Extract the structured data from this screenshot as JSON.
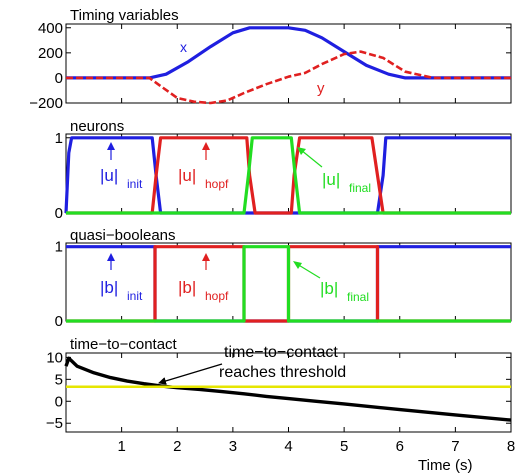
{
  "chart_data": [
    {
      "type": "line",
      "title": "Timing variables",
      "xlim": [
        0,
        8
      ],
      "ylim": [
        -200,
        430
      ],
      "yticks": [
        -200,
        0,
        200,
        400
      ],
      "grid": false,
      "series": [
        {
          "name": "x",
          "color": "#1f1fe0",
          "style": "solid",
          "x": [
            0,
            1,
            1.5,
            1.8,
            2.2,
            2.6,
            3.0,
            3.3,
            3.5,
            4.0,
            4.3,
            4.6,
            5.0,
            5.4,
            5.8,
            6.1,
            6.6,
            8
          ],
          "y": [
            0,
            0,
            0,
            30,
            130,
            250,
            360,
            400,
            400,
            400,
            380,
            320,
            210,
            100,
            30,
            0,
            0,
            0
          ]
        },
        {
          "name": "y",
          "color": "#e02020",
          "style": "dashed",
          "x": [
            0,
            1,
            1.5,
            1.75,
            2.0,
            2.3,
            2.6,
            2.9,
            3.2,
            3.6,
            4.0,
            4.3,
            4.6,
            5.0,
            5.3,
            5.7,
            6.1,
            6.6,
            8
          ],
          "y": [
            0,
            0,
            0,
            -80,
            -160,
            -190,
            -200,
            -180,
            -120,
            -50,
            10,
            40,
            110,
            190,
            210,
            160,
            50,
            0,
            0
          ]
        }
      ],
      "labels": [
        "x",
        "y"
      ]
    },
    {
      "type": "line",
      "title": "neurons",
      "xlim": [
        0,
        8
      ],
      "ylim": [
        0,
        1.05
      ],
      "yticks": [
        0,
        1
      ],
      "series": [
        {
          "name": "|u|init",
          "color": "#1f1fe0",
          "x": [
            0,
            0.05,
            0.1,
            1.55,
            1.62,
            1.7,
            5.6,
            5.7,
            5.75,
            8
          ],
          "y": [
            0,
            0.8,
            1,
            1,
            0.5,
            0,
            0,
            0.5,
            1,
            1
          ]
        },
        {
          "name": "|u|hopf",
          "color": "#e02020",
          "x": [
            0,
            1.55,
            1.62,
            1.7,
            3.25,
            3.3,
            3.4,
            4.05,
            4.1,
            4.2,
            5.5,
            5.6,
            5.7,
            8
          ],
          "y": [
            0,
            0,
            0.5,
            1,
            1,
            0.5,
            0,
            0,
            0.5,
            1,
            1,
            0.5,
            0,
            0
          ]
        },
        {
          "name": "|u|final",
          "color": "#22dd22",
          "x": [
            0,
            3.2,
            3.28,
            3.35,
            4.05,
            4.12,
            4.2,
            8
          ],
          "y": [
            0,
            0,
            0.5,
            1,
            1,
            0.5,
            0,
            0
          ]
        }
      ],
      "annotations": [
        {
          "base": "|u|",
          "sub": "init",
          "x": 0.8,
          "y": 0.66
        },
        {
          "base": "|u|",
          "sub": "hopf",
          "x": 2.43,
          "y": 0.66
        },
        {
          "base": "|u|",
          "sub": "final",
          "x": 4.62,
          "y": 0.6
        }
      ]
    },
    {
      "type": "line",
      "title": "quasi−booleans",
      "xlim": [
        0,
        8
      ],
      "ylim": [
        0,
        1.05
      ],
      "yticks": [
        0,
        1
      ],
      "series": [
        {
          "name": "|b|init",
          "color": "#1f1fe0",
          "x": [
            0,
            1.6,
            1.6,
            5.6,
            5.6,
            8
          ],
          "y": [
            1,
            1,
            0,
            0,
            1,
            1
          ]
        },
        {
          "name": "|b|hopf",
          "color": "#e02020",
          "x": [
            0,
            1.6,
            1.6,
            3.2,
            3.2,
            4.0,
            4.0,
            5.6,
            5.6,
            8
          ],
          "y": [
            0,
            0,
            1,
            1,
            0,
            0,
            1,
            1,
            0,
            0
          ]
        },
        {
          "name": "|b|final",
          "color": "#22dd22",
          "x": [
            0,
            3.2,
            3.2,
            4.0,
            4.0,
            8
          ],
          "y": [
            0,
            0,
            1,
            1,
            0,
            0
          ]
        }
      ],
      "annotations": [
        {
          "base": "|b|",
          "sub": "init",
          "x": 0.8,
          "y": 0.62
        },
        {
          "base": "|b|",
          "sub": "hopf",
          "x": 2.43,
          "y": 0.62
        },
        {
          "base": "|b|",
          "sub": "final",
          "x": 4.62,
          "y": 0.6
        }
      ]
    },
    {
      "type": "line",
      "title": "time−to−contact",
      "xlabel": "Time (s)",
      "xlim": [
        0,
        8
      ],
      "ylim": [
        -7,
        11
      ],
      "yticks": [
        -5,
        0,
        5,
        10
      ],
      "xticks": [
        1,
        2,
        3,
        4,
        5,
        6,
        7,
        8
      ],
      "series": [
        {
          "name": "time-to-contact",
          "color": "#000000",
          "x": [
            0,
            0.05,
            0.1,
            0.2,
            0.5,
            0.8,
            1.1,
            1.4,
            1.7,
            2.0,
            2.4,
            2.8,
            3.2,
            3.6,
            4.0,
            4.5,
            5.0,
            6.0,
            7.0,
            8.0
          ],
          "y": [
            8.0,
            9.8,
            9.2,
            8.0,
            6.5,
            5.4,
            4.6,
            4.0,
            3.5,
            3.1,
            2.7,
            2.2,
            1.7,
            1.1,
            0.6,
            0.0,
            -0.6,
            -1.9,
            -3.1,
            -4.3
          ]
        },
        {
          "name": "threshold",
          "color": "#e6e600",
          "x": [
            0,
            8
          ],
          "y": [
            3.3,
            3.3
          ]
        }
      ],
      "annotation": {
        "line1": "time−to−contact",
        "line2": "reaches threshold"
      }
    }
  ]
}
